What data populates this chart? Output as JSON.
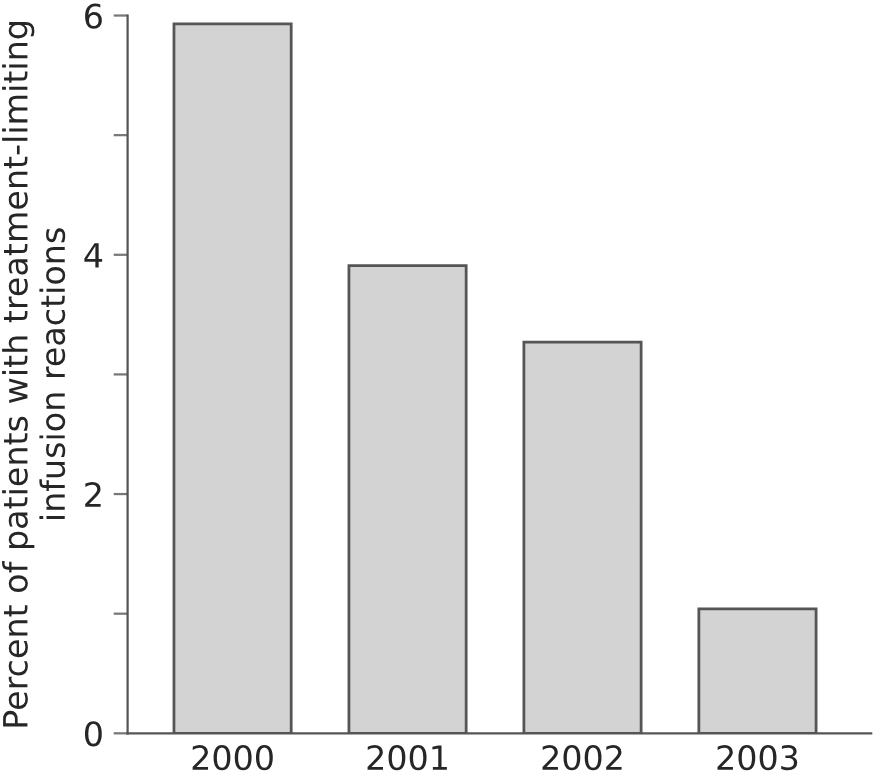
{
  "chart_data": {
    "type": "bar",
    "ylabel": "Percent of patients with treatment-limiting\ninfusion reactions",
    "categories": [
      "2000",
      "2001",
      "2002",
      "2003"
    ],
    "values": [
      5.93,
      3.91,
      3.27,
      1.04
    ],
    "color": "#d3d3d3",
    "ylim": [
      0,
      6
    ],
    "yticks": [
      0,
      {
        "value": 1,
        "label": null
      },
      2,
      {
        "value": 3,
        "label": null
      },
      4,
      {
        "value": 5,
        "label": null
      },
      6
    ],
    "grid": false
  }
}
